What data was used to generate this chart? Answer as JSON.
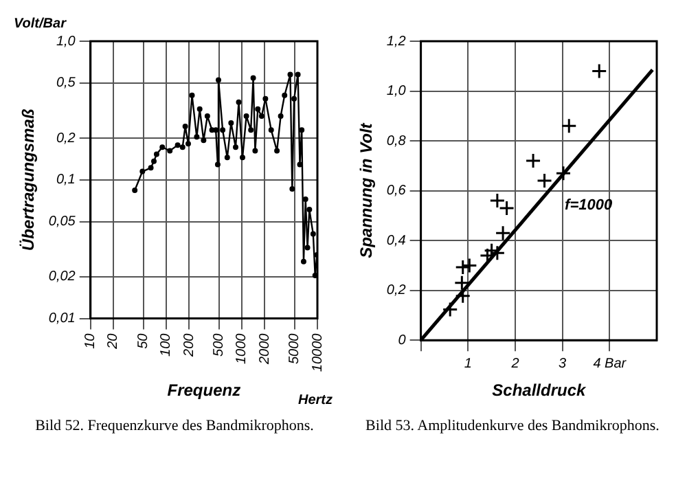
{
  "chart_data": [
    {
      "type": "line",
      "title": "Bild 52. Frequenzkurve des Bandmikrophons.",
      "xlabel": "Frequenz",
      "ylabel": "Übertragungsmaß",
      "annotations": [
        "Volt/Bar",
        "Hertz"
      ],
      "log": "xy",
      "grid": true,
      "marker": "circle",
      "xlim": [
        10,
        10000
      ],
      "xticks": [
        10,
        20,
        50,
        100,
        200,
        500,
        1000,
        2000,
        5000,
        10000
      ],
      "ylim": [
        0.01,
        1
      ],
      "yticks": [
        {
          "value": 0.01,
          "label": "0,01"
        },
        {
          "value": 0.02,
          "label": "0,02"
        },
        {
          "value": 0.05,
          "label": "0,05"
        },
        {
          "value": 0.1,
          "label": "0,1"
        },
        {
          "value": 0.2,
          "label": "0,2"
        },
        {
          "value": 0.5,
          "label": "0,5"
        },
        {
          "value": 1,
          "label": "1,0"
        }
      ],
      "series": [
        {
          "color": "#000000",
          "x": [
            38.5,
            48.6,
            62.8,
            68.9,
            74.8,
            89,
            112,
            142,
            165,
            179,
            196,
            220,
            254,
            278,
            313,
            351,
            404,
            454,
            481,
            492,
            559,
            643,
            722,
            830,
            912,
            1023,
            1150,
            1320,
            1418,
            1503,
            1630,
            1832,
            2056,
            2449,
            2917,
            3273,
            3681,
            4375,
            4645,
            4920,
            5521,
            5861,
            6209,
            6577,
            6966,
            7396,
            7834,
            8790,
            9333,
            9886
          ],
          "values": [
            0.084,
            0.115,
            0.122,
            0.136,
            0.153,
            0.172,
            0.162,
            0.178,
            0.172,
            0.243,
            0.182,
            0.407,
            0.204,
            0.324,
            0.193,
            0.288,
            0.229,
            0.229,
            0.129,
            0.525,
            0.229,
            0.145,
            0.257,
            0.172,
            0.363,
            0.145,
            0.288,
            0.229,
            0.543,
            0.162,
            0.324,
            0.288,
            0.385,
            0.229,
            0.162,
            0.288,
            0.407,
            0.575,
            0.086,
            0.385,
            0.575,
            0.129,
            0.229,
            0.0257,
            0.0724,
            0.0324,
            0.061,
            0.0407,
            0.0204,
            0.0288
          ]
        }
      ]
    },
    {
      "type": "scatter",
      "title": "Bild 53. Amplitudenkurve des Bandmikrophons.",
      "xlabel": "Schalldruck",
      "ylabel": "Spannung in Volt",
      "grid": true,
      "xlim": [
        0,
        5
      ],
      "xticks": [
        {
          "value": 0,
          "label": null
        },
        1,
        2,
        3,
        {
          "value": 4,
          "label": "4 Bar"
        }
      ],
      "ylim": [
        0,
        1.2
      ],
      "yticks": [
        0,
        {
          "value": 0.2,
          "label": "0,2"
        },
        {
          "value": 0.4,
          "label": "0,4"
        },
        {
          "value": 0.6,
          "label": "0,6"
        },
        {
          "value": 0.8,
          "label": "0,8"
        },
        {
          "value": 1,
          "label": "1,0"
        },
        {
          "value": 1.2,
          "label": "1,2"
        }
      ],
      "series": [
        {
          "type": "scatter",
          "color": "#000000",
          "marker": "cross",
          "x": [
            0.62,
            0.89,
            0.87,
            0.89,
            1.03,
            1.41,
            1.5,
            1.62,
            1.74,
            1.62,
            1.82,
            2.38,
            2.62,
            3.02,
            3.14,
            3.78
          ],
          "values": [
            0.123,
            0.178,
            0.23,
            0.293,
            0.3,
            0.34,
            0.36,
            0.35,
            0.43,
            0.56,
            0.53,
            0.72,
            0.64,
            0.67,
            0.86,
            1.08
          ]
        },
        {
          "type": "line",
          "name": "f=1000",
          "color": "#000000",
          "marker": "none",
          "x": [
            0,
            4.91
          ],
          "values": [
            0,
            1.085
          ]
        }
      ]
    }
  ]
}
